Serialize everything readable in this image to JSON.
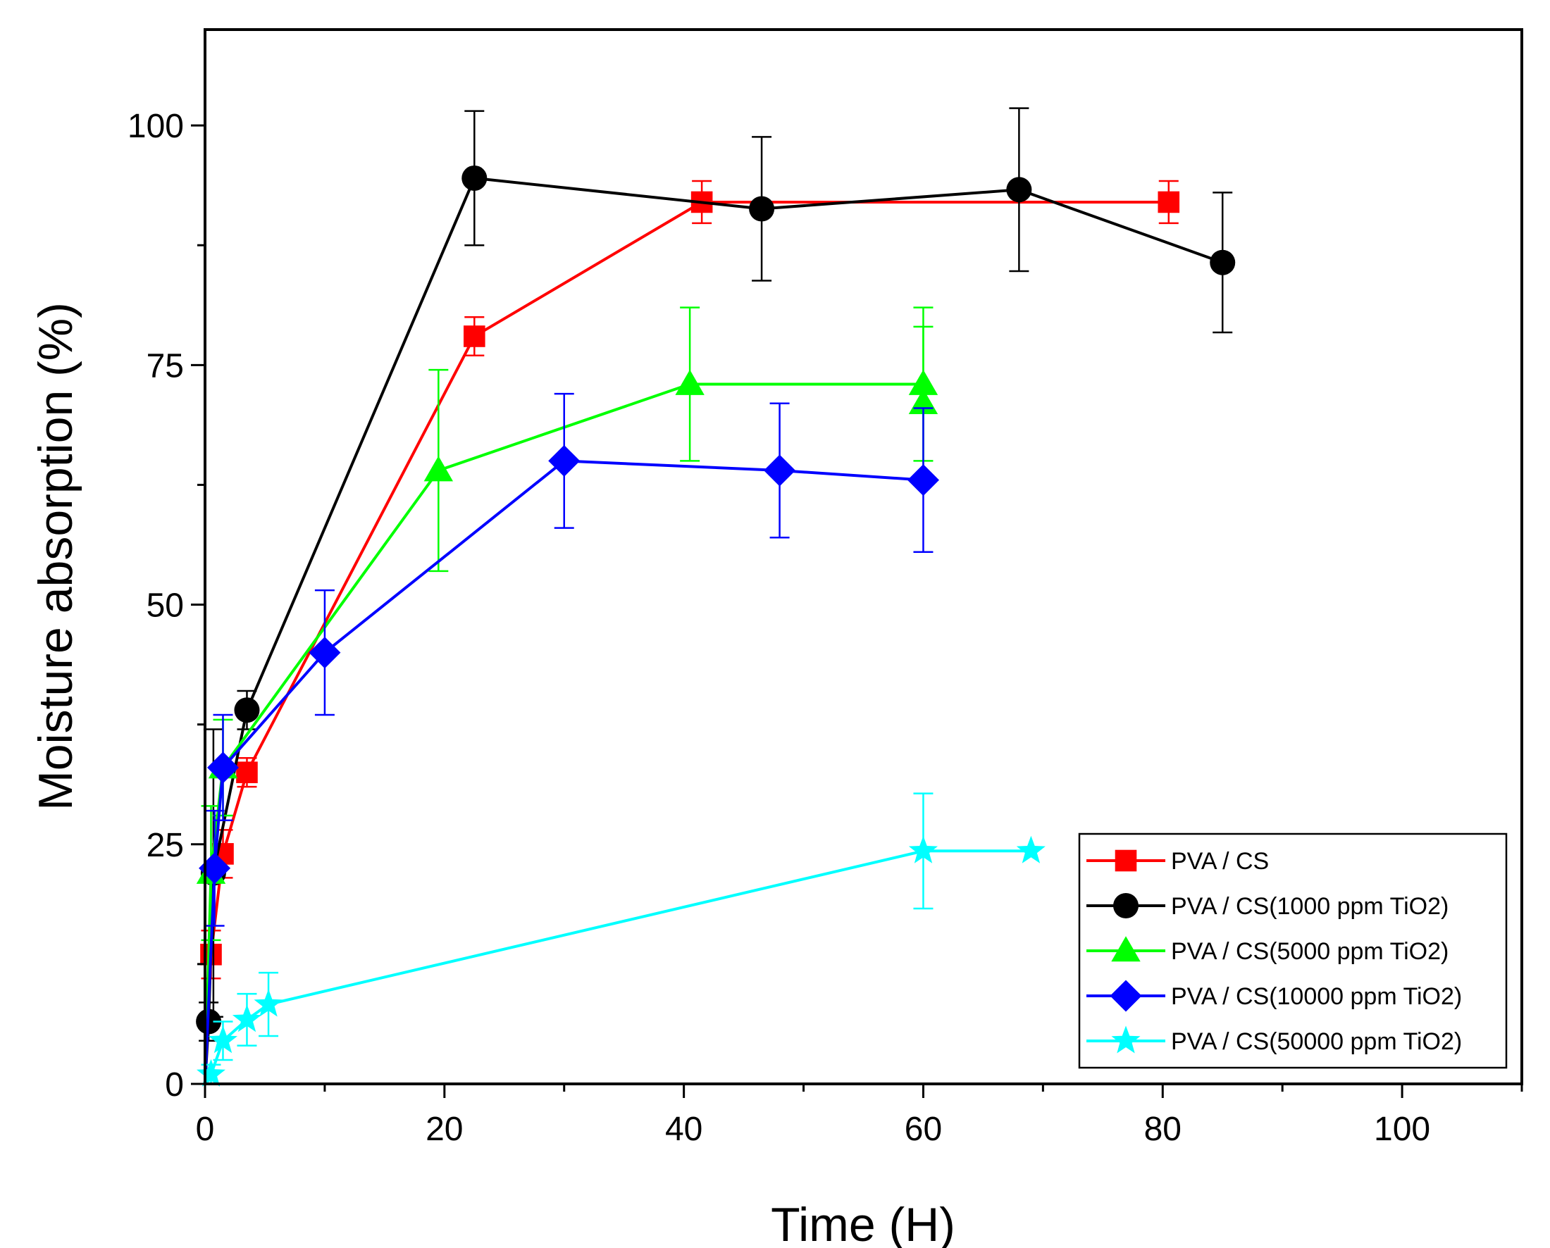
{
  "chart_data": {
    "type": "line",
    "title": "",
    "xlabel": "Time (H)",
    "ylabel": "Moisture absorption (%)",
    "xlim": [
      0,
      110
    ],
    "ylim": [
      0,
      110
    ],
    "xticks": [
      0,
      20,
      40,
      60,
      80,
      100
    ],
    "xtick_labels": [
      "0",
      "20",
      "40",
      "60",
      "80",
      "100"
    ],
    "yticks": [
      0,
      25,
      50,
      75,
      100
    ],
    "ytick_labels": [
      "0",
      "25",
      "50",
      "75",
      "100"
    ],
    "x_minor_step": 10,
    "y_minor_step": 12.5,
    "grid": false,
    "legend_position": "bottom-right",
    "series": [
      {
        "name": "PVA / CS",
        "color": "#ff0000",
        "marker": "square",
        "x": [
          0,
          0.5,
          1.5,
          3.5,
          22.5,
          41.5,
          80.5
        ],
        "y": [
          0,
          13.5,
          24.0,
          32.5,
          78.0,
          92.0,
          92.0
        ],
        "err": [
          0,
          2.5,
          2.5,
          1.5,
          2.0,
          2.2,
          2.2
        ]
      },
      {
        "name": "PVA / CS(1000 ppm TiO2)",
        "color": "#000000",
        "marker": "circle",
        "x": [
          0,
          0.3,
          0.7,
          3.5,
          22.5,
          46.5,
          68.0,
          85.0
        ],
        "y": [
          0,
          6.5,
          22.0,
          39.0,
          94.5,
          91.3,
          93.3,
          85.7
        ],
        "err": [
          0,
          2.0,
          15.0,
          2.0,
          7.0,
          7.5,
          8.5,
          7.3
        ]
      },
      {
        "name": "PVA / CS(5000 ppm TiO2)",
        "color": "#00ff00",
        "marker": "triangle",
        "x": [
          0,
          0.5,
          1.5,
          19.5,
          40.5,
          60.0,
          60.0
        ],
        "y": [
          0,
          22.0,
          33.0,
          64.0,
          73.0,
          73.0,
          71.0
        ],
        "err": [
          0,
          7.0,
          5.0,
          10.5,
          8.0,
          8.0,
          8.0
        ]
      },
      {
        "name": "PVA / CS(10000 ppm TiO2)",
        "color": "#0000ff",
        "marker": "diamond",
        "x": [
          0,
          0.8,
          1.5,
          10.0,
          30.0,
          48.0,
          60.0
        ],
        "y": [
          0,
          22.5,
          33.0,
          45.0,
          65.0,
          64.0,
          63.0
        ],
        "err": [
          0,
          6.0,
          5.5,
          6.5,
          7.0,
          7.0,
          7.5
        ]
      },
      {
        "name": "PVA / CS(50000 ppm TiO2)",
        "color": "#00ffff",
        "marker": "star",
        "x": [
          0,
          0.5,
          1.5,
          3.5,
          5.3,
          60.0,
          69.0
        ],
        "y": [
          0,
          1.0,
          4.5,
          6.7,
          8.3,
          24.3,
          24.3
        ],
        "err": [
          0,
          1.0,
          2.0,
          2.7,
          3.3,
          6.0,
          0
        ]
      }
    ]
  }
}
